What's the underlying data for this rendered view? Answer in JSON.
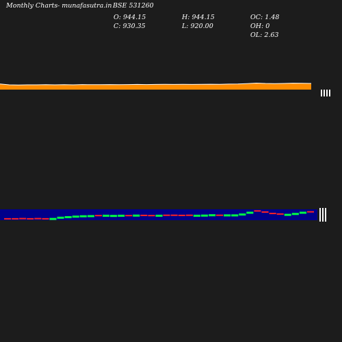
{
  "header": {
    "title": "Monthly Charts",
    "source": "- munafasutra.in",
    "symbol": "BSE 531260"
  },
  "ohlc": {
    "open": "O: 944.15",
    "high": "H: 944.15",
    "oc": "OC: 1.48",
    "close": "C: 930.35",
    "low": "L: 920.00",
    "oh": "OH: 0",
    "ol": "OL: 2.63"
  },
  "colors": {
    "background": "#1c1c1c",
    "price_line": "#ff8c00",
    "panel": "#00008b",
    "up": "#00ff44",
    "down": "#ff2222"
  },
  "chart_data": [
    {
      "type": "line",
      "title": "",
      "series": [
        {
          "values": [
            4.6,
            3.9,
            3.8,
            3.9,
            3.9,
            4.0,
            3.9,
            4.0,
            3.9,
            4.1,
            4.0,
            4.0,
            4.1,
            4.0,
            4.1,
            4.2,
            4.1,
            4.2,
            4.3,
            4.2,
            4.3,
            4.2,
            4.3,
            4.4,
            4.3,
            4.5,
            4.6,
            4.9,
            5.3,
            5.0,
            4.9,
            5.0,
            5.2,
            5.1,
            5.0
          ]
        }
      ]
    },
    {
      "type": "bar",
      "title": "",
      "bars": [
        {
          "v": 1.2,
          "up": false
        },
        {
          "v": 1.2,
          "up": false
        },
        {
          "v": 1.3,
          "up": false
        },
        {
          "v": 1.2,
          "up": false
        },
        {
          "v": 1.3,
          "up": false
        },
        {
          "v": 1.2,
          "up": false
        },
        {
          "v": 1.3,
          "up": true
        },
        {
          "v": 2.0,
          "up": true
        },
        {
          "v": 2.3,
          "up": true
        },
        {
          "v": 2.6,
          "up": true
        },
        {
          "v": 2.8,
          "up": true
        },
        {
          "v": 2.9,
          "up": true
        },
        {
          "v": 3.0,
          "up": false
        },
        {
          "v": 3.1,
          "up": true
        },
        {
          "v": 3.0,
          "up": true
        },
        {
          "v": 3.1,
          "up": true
        },
        {
          "v": 3.0,
          "up": false
        },
        {
          "v": 3.2,
          "up": true
        },
        {
          "v": 3.1,
          "up": false
        },
        {
          "v": 3.0,
          "up": false
        },
        {
          "v": 3.1,
          "up": true
        },
        {
          "v": 3.2,
          "up": false
        },
        {
          "v": 3.2,
          "up": false
        },
        {
          "v": 3.1,
          "up": false
        },
        {
          "v": 3.2,
          "up": false
        },
        {
          "v": 3.1,
          "up": true
        },
        {
          "v": 3.2,
          "up": true
        },
        {
          "v": 3.4,
          "up": true
        },
        {
          "v": 3.2,
          "up": false
        },
        {
          "v": 3.3,
          "up": true
        },
        {
          "v": 3.3,
          "up": true
        },
        {
          "v": 3.8,
          "up": true
        },
        {
          "v": 4.8,
          "up": true
        },
        {
          "v": 5.6,
          "up": false
        },
        {
          "v": 5.0,
          "up": false
        },
        {
          "v": 4.2,
          "up": false
        },
        {
          "v": 3.9,
          "up": false
        },
        {
          "v": 3.6,
          "up": true
        },
        {
          "v": 4.1,
          "up": true
        },
        {
          "v": 4.8,
          "up": true
        },
        {
          "v": 5.1,
          "up": false
        }
      ]
    }
  ]
}
